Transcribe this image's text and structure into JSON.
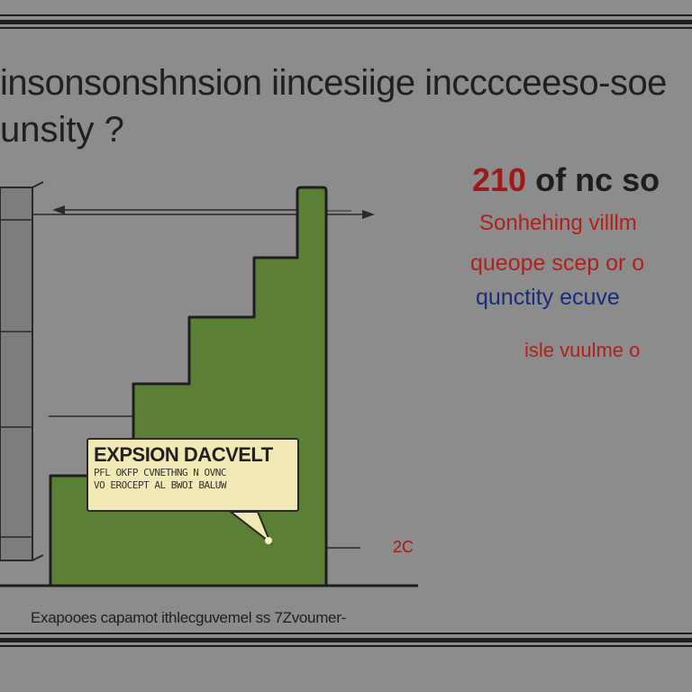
{
  "title_line1": "insonsonshnsion iincesiige incccceeso-soe",
  "title_line2": "unsity ?",
  "callout": {
    "title": "EXPSION DACVELT",
    "line1": "PFL OKFP CVNETHNG N OVNC",
    "line2": "VO EROCEPT AL BWOI BALUW"
  },
  "right_panel": {
    "big_number": "210",
    "big_text": "of nc so",
    "line1": "Sonhehing villlm",
    "line2": "queope scep or o",
    "line3": "qunctity ecuve",
    "line4": "isle vuulme o"
  },
  "side_label": "2C",
  "caption": "Exapooes capamot ithlecguvemel ss 7Zvoumer-",
  "colors": {
    "background": "#8c8c8c",
    "step_fill": "#5a7f35",
    "outline": "#1e1e1e",
    "callout_fill": "#f1e9b5",
    "red_text": "#b3201c",
    "blue_text": "#1a2c7a"
  }
}
